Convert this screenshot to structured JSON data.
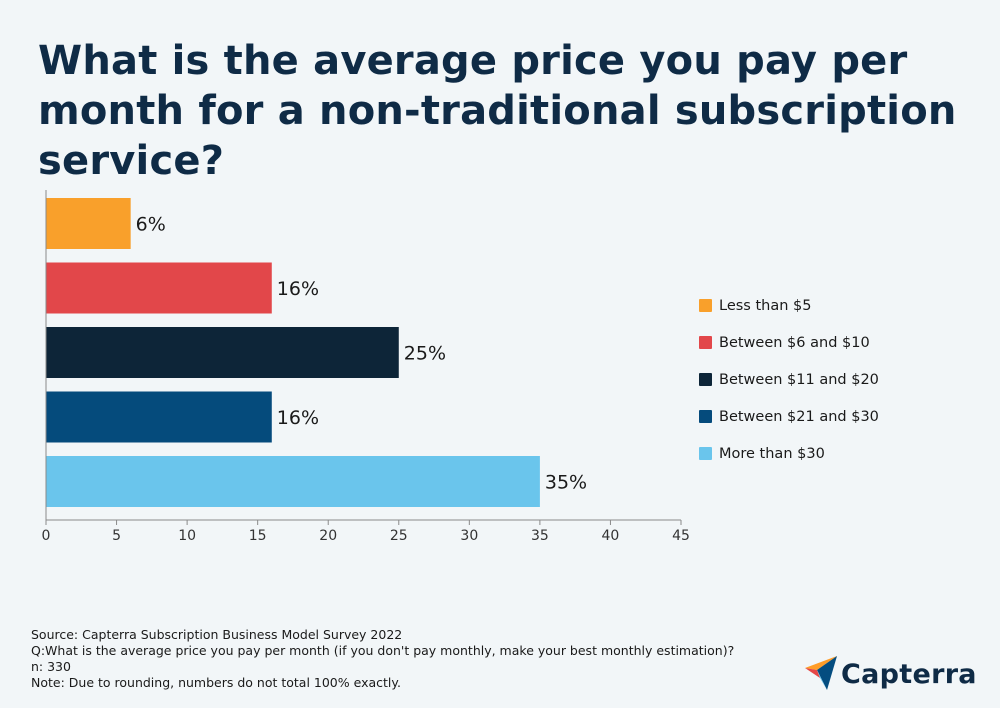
{
  "title": "What is the average price you pay per month for a non-traditional subscription service?",
  "chart_data": {
    "type": "bar",
    "orientation": "horizontal",
    "categories": [
      "Less than $5",
      "Between $6 and $10",
      "Between $11 and $20",
      "Between $21 and $30",
      "More than $30"
    ],
    "values": [
      6,
      16,
      25,
      16,
      35
    ],
    "data_labels": [
      "6%",
      "16%",
      "25%",
      "16%",
      "35%"
    ],
    "colors": [
      "#f9a02b",
      "#e2474a",
      "#0d2538",
      "#054b7c",
      "#6ac5ec"
    ],
    "xlim": [
      0,
      45
    ],
    "xticks": [
      0,
      5,
      10,
      15,
      20,
      25,
      30,
      35,
      40,
      45
    ],
    "grid": false,
    "legend_position": "right"
  },
  "legend": [
    {
      "label": "Less than $5",
      "color": "#f9a02b"
    },
    {
      "label": "Between $6 and $10",
      "color": "#e2474a"
    },
    {
      "label": "Between $11 and $20",
      "color": "#0d2538"
    },
    {
      "label": "Between $21 and $30",
      "color": "#054b7c"
    },
    {
      "label": "More than $30",
      "color": "#6ac5ec"
    }
  ],
  "footer": {
    "source": "Source: Capterra Subscription Business Model Survey 2022",
    "question": "Q:What is the average price you pay per month (if you don't pay monthly, make your best monthly estimation)?",
    "n": "n: 330",
    "note": "Note: Due to rounding, numbers do not total 100% exactly."
  },
  "logo": {
    "text": "Capterra",
    "icon": "capterra-arrow-icon"
  }
}
